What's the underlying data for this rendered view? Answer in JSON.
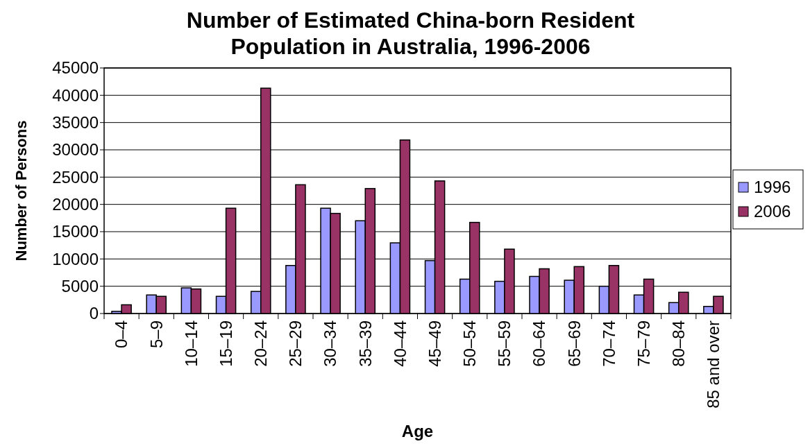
{
  "chart_data": {
    "type": "bar",
    "title": "Number of Estimated China-born Resident Population in Australia, 1996-2006",
    "xlabel": "Age",
    "ylabel": "Number of Persons",
    "categories": [
      "0–4",
      "5–9",
      "10–14",
      "15–19",
      "20–24",
      "25–29",
      "30–34",
      "35–39",
      "40–44",
      "45–49",
      "50–54",
      "55–59",
      "60–64",
      "65–69",
      "70–74",
      "75–79",
      "80–84",
      "85 and over"
    ],
    "series": [
      {
        "name": "1996",
        "color": "#9999ff",
        "values": [
          400,
          3400,
          4700,
          3150,
          4050,
          8800,
          19300,
          17000,
          12950,
          9700,
          6300,
          5900,
          6800,
          6100,
          5000,
          3400,
          2000,
          1300
        ]
      },
      {
        "name": "2006",
        "color": "#993366",
        "values": [
          1600,
          3150,
          4500,
          19300,
          41300,
          23600,
          18350,
          22900,
          31800,
          24300,
          16700,
          11800,
          8200,
          8600,
          8800,
          6300,
          3900,
          3150
        ]
      }
    ],
    "ylim": [
      0,
      45000
    ],
    "yticks": [
      0,
      5000,
      10000,
      15000,
      20000,
      25000,
      30000,
      35000,
      40000,
      45000
    ],
    "grid": "y",
    "legend": "right"
  }
}
